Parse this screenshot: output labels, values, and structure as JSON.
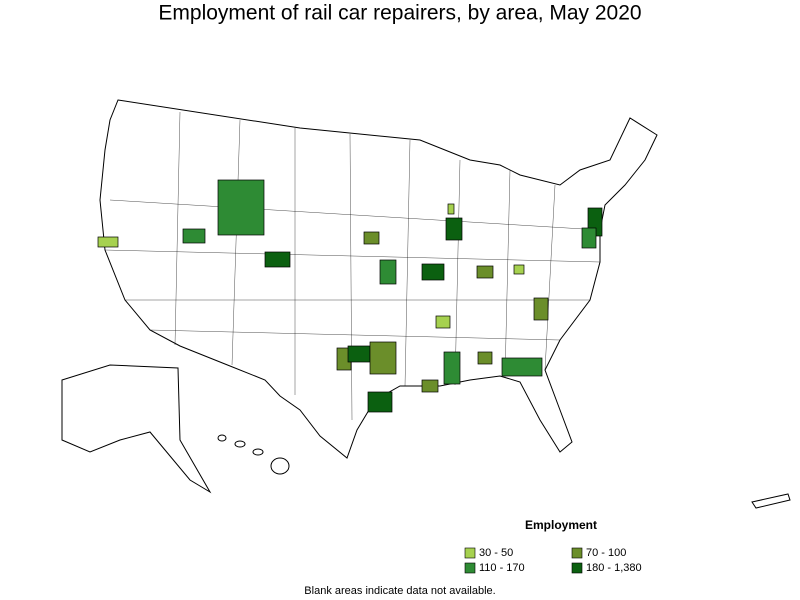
{
  "title": "Employment of rail car repairers, by area, May 2020",
  "legend": {
    "title": "Employment",
    "items": [
      {
        "label": "30 - 50",
        "color": "#a6d14f"
      },
      {
        "label": "70 - 100",
        "color": "#6b8e2a"
      },
      {
        "label": "110 - 170",
        "color": "#2e8b34"
      },
      {
        "label": "180 - 1,380",
        "color": "#0b6010"
      }
    ]
  },
  "note": "Blank areas indicate data not available."
}
